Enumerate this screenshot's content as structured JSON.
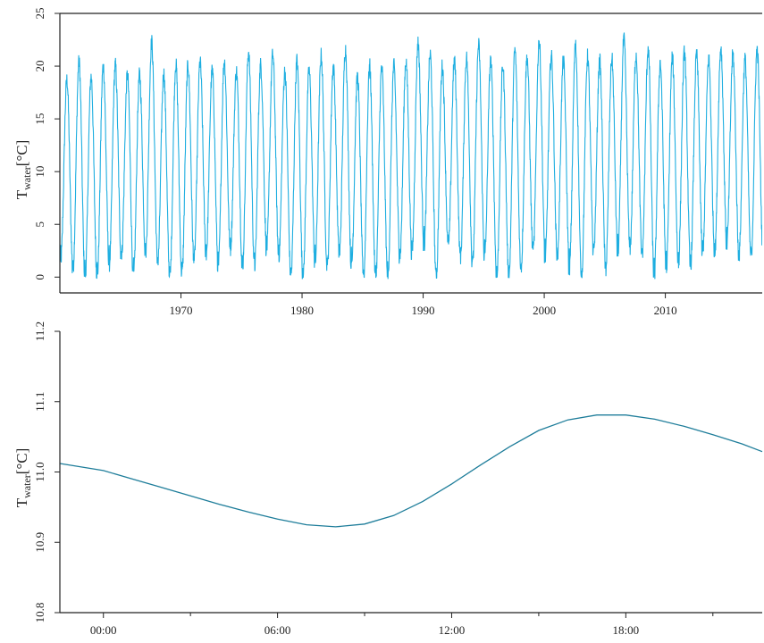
{
  "chart_data": [
    {
      "type": "line",
      "title": "",
      "ylabel": "T",
      "ylabel_sub": "water",
      "ylabel_unit": "[°C]",
      "xlabel": "",
      "x_range_years": [
        1960.0,
        2018.0
      ],
      "xlim_text": [
        "1960",
        "2018"
      ],
      "ylim": [
        -1.5,
        25
      ],
      "xticks": [
        1970,
        1980,
        1990,
        2000,
        2010
      ],
      "xtick_labels": [
        "1970",
        "1980",
        "1990",
        "2000",
        "2010"
      ],
      "yticks": [
        0,
        5,
        10,
        15,
        20,
        25
      ],
      "ytick_labels": [
        "0",
        "5",
        "10",
        "15",
        "20",
        "25"
      ],
      "grid": false,
      "legend": "none",
      "series": [
        {
          "color": "#1eaee0",
          "description_of_shape": "annual seasonal oscillation",
          "annual_peaks": [
            [
              1960,
              18.7
            ],
            [
              1961,
              20.4
            ],
            [
              1962,
              19.0
            ],
            [
              1963,
              20.0
            ],
            [
              1964,
              20.1
            ],
            [
              1965,
              19.2
            ],
            [
              1966,
              19.2
            ],
            [
              1967,
              22.3
            ],
            [
              1968,
              19.3
            ],
            [
              1969,
              20.2
            ],
            [
              1970,
              20.1
            ],
            [
              1971,
              20.4
            ],
            [
              1972,
              19.6
            ],
            [
              1973,
              20.5
            ],
            [
              1974,
              19.5
            ],
            [
              1975,
              21.4
            ],
            [
              1976,
              20.1
            ],
            [
              1977,
              21.1
            ],
            [
              1978,
              19.5
            ],
            [
              1979,
              20.5
            ],
            [
              1980,
              19.6
            ],
            [
              1981,
              21.0
            ],
            [
              1982,
              20.0
            ],
            [
              1983,
              21.6
            ],
            [
              1984,
              19.0
            ],
            [
              1985,
              20.0
            ],
            [
              1986,
              19.9
            ],
            [
              1987,
              20.0
            ],
            [
              1988,
              20.5
            ],
            [
              1989,
              22.2
            ],
            [
              1990,
              21.1
            ],
            [
              1991,
              20.0
            ],
            [
              1992,
              20.5
            ],
            [
              1993,
              20.8
            ],
            [
              1994,
              22.0
            ],
            [
              1995,
              20.5
            ],
            [
              1996,
              20.0
            ],
            [
              1997,
              21.5
            ],
            [
              1998,
              20.8
            ],
            [
              1999,
              22.4
            ],
            [
              2000,
              21.0
            ],
            [
              2001,
              20.5
            ],
            [
              2002,
              21.9
            ],
            [
              2003,
              20.9
            ],
            [
              2004,
              20.5
            ],
            [
              2005,
              20.7
            ],
            [
              2006,
              22.5
            ],
            [
              2007,
              21.1
            ],
            [
              2008,
              21.7
            ],
            [
              2009,
              20.3
            ],
            [
              2010,
              20.8
            ],
            [
              2011,
              21.3
            ],
            [
              2012,
              21.1
            ],
            [
              2013,
              20.7
            ],
            [
              2014,
              21.7
            ],
            [
              2015,
              21.1
            ],
            [
              2016,
              20.6
            ],
            [
              2017,
              21.6
            ]
          ],
          "annual_minima": [
            [
              1960,
              1.7
            ],
            [
              1961,
              0.7
            ],
            [
              1962,
              -0.1
            ],
            [
              1963,
              -0.1
            ],
            [
              1964,
              1.2
            ],
            [
              1965,
              1.9
            ],
            [
              1966,
              0.0
            ],
            [
              1967,
              2.3
            ],
            [
              1968,
              1.2
            ],
            [
              1969,
              -0.1
            ],
            [
              1970,
              0.2
            ],
            [
              1971,
              1.5
            ],
            [
              1972,
              2.2
            ],
            [
              1973,
              1.0
            ],
            [
              1974,
              2.7
            ],
            [
              1975,
              0.9
            ],
            [
              1976,
              1.0
            ],
            [
              1977,
              2.7
            ],
            [
              1978,
              2.0
            ],
            [
              1979,
              0.0
            ],
            [
              1980,
              -0.1
            ],
            [
              1981,
              1.3
            ],
            [
              1982,
              0.9
            ],
            [
              1983,
              2.1
            ],
            [
              1984,
              1.0
            ],
            [
              1985,
              -0.1
            ],
            [
              1986,
              -0.1
            ],
            [
              1987,
              0.0
            ],
            [
              1988,
              2.0
            ],
            [
              1989,
              2.2
            ],
            [
              1990,
              3.0
            ],
            [
              1991,
              -0.1
            ],
            [
              1992,
              2.8
            ],
            [
              1993,
              1.9
            ],
            [
              1994,
              1.2
            ],
            [
              1995,
              1.9
            ],
            [
              1996,
              -0.1
            ],
            [
              1997,
              -0.1
            ],
            [
              1998,
              0.7
            ],
            [
              1999,
              2.3
            ],
            [
              2000,
              1.9
            ],
            [
              2001,
              1.8
            ],
            [
              2002,
              0.9
            ],
            [
              2003,
              -0.1
            ],
            [
              2004,
              2.4
            ],
            [
              2005,
              0.7
            ],
            [
              2006,
              2.3
            ],
            [
              2007,
              2.7
            ],
            [
              2008,
              2.0
            ],
            [
              2009,
              -0.1
            ],
            [
              2010,
              0.8
            ],
            [
              2011,
              1.3
            ],
            [
              2012,
              0.9
            ],
            [
              2013,
              2.2
            ],
            [
              2014,
              2.3
            ],
            [
              2015,
              3.2
            ],
            [
              2016,
              2.0
            ],
            [
              2017,
              1.8
            ]
          ]
        }
      ]
    },
    {
      "type": "line",
      "title": "",
      "ylabel": "T",
      "ylabel_sub": "water",
      "ylabel_unit": "[°C]",
      "xlabel": "",
      "x_hours_range": [
        -1.5,
        22.7
      ],
      "ylim": [
        10.8,
        11.2
      ],
      "xticks_hours": [
        0,
        6,
        12,
        18
      ],
      "xtick_labels": [
        "00:00",
        "06:00",
        "12:00",
        "18:00"
      ],
      "minor_ticks_hours": [
        3,
        9,
        15,
        21
      ],
      "yticks": [
        10.8,
        10.9,
        11.0,
        11.1,
        11.2
      ],
      "ytick_labels": [
        "10.8",
        "10.9",
        "11.0",
        "11.1",
        "11.2"
      ],
      "grid": false,
      "legend": "none",
      "series": [
        {
          "color": "#1e7d9a",
          "x_hours": [
            -1.5,
            0,
            1,
            2,
            3,
            4,
            5,
            6,
            7,
            8,
            9,
            10,
            11,
            12,
            13,
            14,
            15,
            16,
            17,
            18,
            19,
            20,
            21,
            22,
            22.7
          ],
          "values": [
            11.012,
            11.002,
            10.99,
            10.978,
            10.966,
            10.954,
            10.943,
            10.933,
            10.925,
            10.922,
            10.926,
            10.938,
            10.958,
            10.983,
            11.01,
            11.036,
            11.059,
            11.074,
            11.081,
            11.081,
            11.075,
            11.065,
            11.053,
            11.04,
            11.029
          ]
        }
      ]
    }
  ]
}
